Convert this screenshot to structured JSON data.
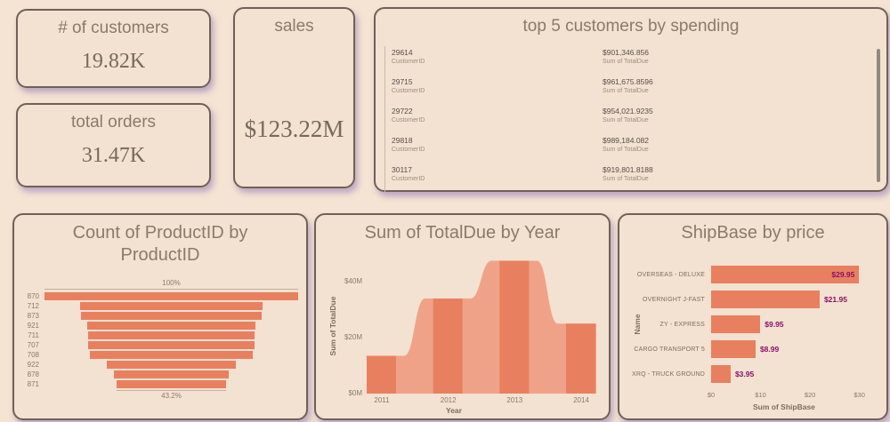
{
  "theme": {
    "page_bg": "#f5e3d3",
    "card_bg": "#f3e1d1",
    "card_border": "#6f6156",
    "shadow": "rgba(142,118,180,0.55)",
    "title_color": "#8b7a6c",
    "kpi_color": "#77695c",
    "accent": "#e8805f",
    "accent_light": "#f0a289",
    "data_label_color": "#8a1066"
  },
  "kpi_cards": [
    {
      "title": "# of customers",
      "value": "19.82K"
    },
    {
      "title": "total orders",
      "value": "31.47K"
    },
    {
      "title": "sales",
      "value": "$123.22M"
    }
  ],
  "top5": {
    "title": "top 5 customers by spending",
    "rows": [
      {
        "id": "29614",
        "id_label": "CustomerID",
        "amount": "$901,346.856",
        "amount_label": "Sum of TotalDue"
      },
      {
        "id": "29715",
        "id_label": "CustomerID",
        "amount": "$961,675.8596",
        "amount_label": "Sum of TotalDue"
      },
      {
        "id": "29722",
        "id_label": "CustomerID",
        "amount": "$954,021.9235",
        "amount_label": "Sum of TotalDue"
      },
      {
        "id": "29818",
        "id_label": "CustomerID",
        "amount": "$989,184.082",
        "amount_label": "Sum of TotalDue"
      },
      {
        "id": "30117",
        "id_label": "CustomerID",
        "amount": "$919,801.8188",
        "amount_label": "Sum of TotalDue"
      }
    ]
  },
  "chart_data": [
    {
      "type": "bar",
      "variant": "funnel",
      "title": "Count of ProductID by ProductID",
      "categories": [
        "870",
        "712",
        "873",
        "921",
        "711",
        "707",
        "708",
        "922",
        "878",
        "871"
      ],
      "values_pct_of_max": [
        100,
        72.1,
        71.5,
        66.0,
        65.9,
        65.8,
        64.1,
        50.7,
        45.2,
        43.2
      ],
      "top_label": "100%",
      "bottom_label": "43.2%",
      "legend": "none",
      "grid": false
    },
    {
      "type": "area",
      "title": "Sum of TotalDue by Year",
      "x": [
        "2011",
        "2012",
        "2013",
        "2014"
      ],
      "values_millions": [
        13.5,
        34,
        47.5,
        25
      ],
      "xlabel": "Year",
      "ylabel": "Sum of TotalDue",
      "yticks": [
        {
          "label": "$0M",
          "value": 0
        },
        {
          "label": "$20M",
          "value": 20
        },
        {
          "label": "$40M",
          "value": 40
        }
      ],
      "ylim": [
        0,
        48.6
      ],
      "grid": false,
      "legend": "none",
      "style": "stepped area, smooth transitions, darker band centered on each year tick"
    },
    {
      "type": "bar",
      "orientation": "horizontal",
      "title": "ShipBase by price",
      "categories": [
        "OVERSEAS - DELUXE",
        "OVERNIGHT J-FAST",
        "ZY - EXPRESS",
        "CARGO TRANSPORT 5",
        "XRQ - TRUCK GROUND"
      ],
      "values": [
        29.95,
        21.95,
        9.95,
        8.99,
        3.95
      ],
      "data_labels": [
        "$29.95",
        "$21.95",
        "$9.95",
        "$8.99",
        "$3.95"
      ],
      "xticks": [
        {
          "label": "$0",
          "value": 0
        },
        {
          "label": "$10",
          "value": 10
        },
        {
          "label": "$20",
          "value": 20
        },
        {
          "label": "$30",
          "value": 30
        }
      ],
      "xlim": [
        0,
        36
      ],
      "xlabel": "Sum of ShipBase",
      "ylabel": "Name",
      "legend": "none",
      "grid": false
    }
  ]
}
